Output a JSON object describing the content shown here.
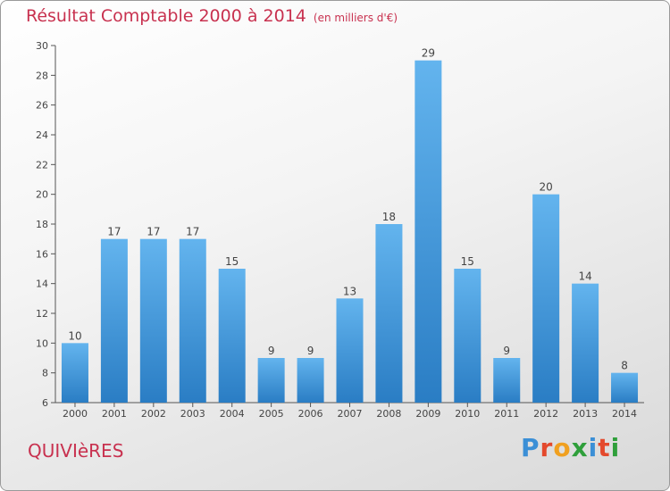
{
  "title": "Résultat Comptable 2000 à 2014",
  "subtitle": "(en milliers d'€)",
  "commune": "QUIVIèRES",
  "logo": {
    "letters": [
      "P",
      "r",
      "o",
      "x",
      "i",
      "t",
      "i"
    ],
    "colors": [
      "#3b8fd6",
      "#e4492c",
      "#f0a020",
      "#2f9f3b",
      "#3b8fd6",
      "#e4492c",
      "#2f9f3b"
    ]
  },
  "colors": {
    "title": "#c8314f",
    "bar_top": "#63b4ee",
    "bar_bottom": "#2a7dc4",
    "axis": "#555555",
    "grid": "#cfcfcf"
  },
  "chart_data": {
    "type": "bar",
    "categories": [
      "2000",
      "2001",
      "2002",
      "2003",
      "2004",
      "2005",
      "2006",
      "2007",
      "2008",
      "2009",
      "2010",
      "2011",
      "2012",
      "2013",
      "2014"
    ],
    "values": [
      10,
      17,
      17,
      17,
      15,
      9,
      9,
      13,
      18,
      29,
      15,
      9,
      20,
      14,
      8
    ],
    "title": "Résultat Comptable 2000 à 2014",
    "xlabel": "",
    "ylabel": "",
    "ylim": [
      6,
      30
    ],
    "yticks": [
      6,
      8,
      10,
      12,
      14,
      16,
      18,
      20,
      22,
      24,
      26,
      28,
      30
    ],
    "grid": false,
    "data_labels": true
  }
}
